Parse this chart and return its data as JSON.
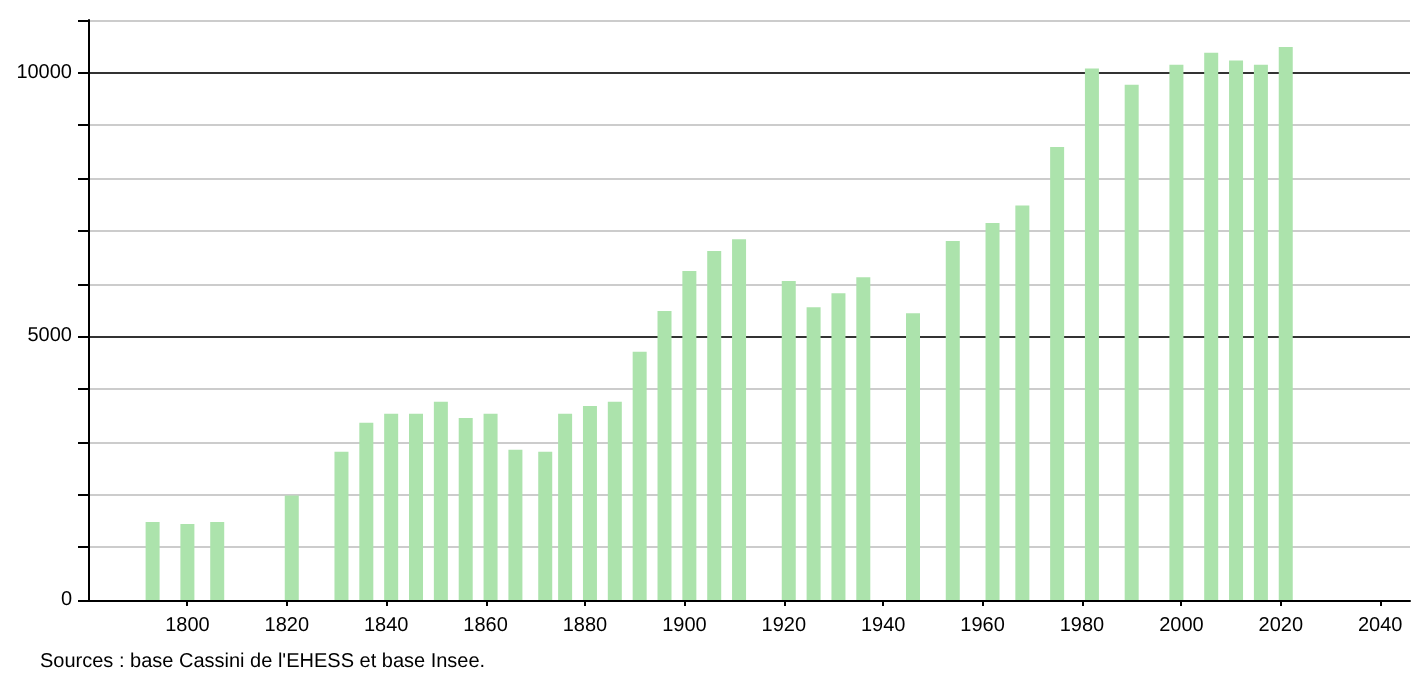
{
  "chart_data": {
    "type": "bar",
    "x": [
      1793,
      1800,
      1806,
      1821,
      1831,
      1836,
      1841,
      1846,
      1851,
      1856,
      1861,
      1866,
      1872,
      1876,
      1881,
      1886,
      1891,
      1896,
      1901,
      1906,
      1911,
      1921,
      1926,
      1931,
      1936,
      1946,
      1954,
      1962,
      1968,
      1975,
      1982,
      1990,
      1999,
      2006,
      2011,
      2016,
      2021
    ],
    "values": [
      1480,
      1440,
      1480,
      1980,
      2810,
      3360,
      3530,
      3530,
      3760,
      3450,
      3530,
      2850,
      2810,
      3530,
      3680,
      3760,
      4710,
      5480,
      6240,
      6620,
      6840,
      6050,
      5550,
      5820,
      6120,
      5440,
      6810,
      7150,
      7480,
      8590,
      10080,
      9770,
      10150,
      10380,
      10230,
      10150,
      10490
    ],
    "color": "#ace3ac",
    "xlim": [
      1780,
      2046
    ],
    "xticks": [
      1800,
      1820,
      1840,
      1860,
      1880,
      1900,
      1920,
      1940,
      1960,
      1980,
      2000,
      2020,
      2040
    ],
    "ylim": [
      0,
      11000
    ],
    "yticks": [
      0,
      {
        "value": 1000,
        "label": null
      },
      {
        "value": 2000,
        "label": null
      },
      {
        "value": 3000,
        "label": null
      },
      {
        "value": 4000,
        "label": null
      },
      5000,
      {
        "value": 6000,
        "label": null
      },
      {
        "value": 7000,
        "label": null
      },
      {
        "value": 8000,
        "label": null
      },
      {
        "value": 9000,
        "label": null
      },
      10000,
      {
        "value": 11000,
        "label": null
      }
    ],
    "grid": "y",
    "annotations": [
      "Sources : base Cassini de l'EHESS et base Insee."
    ]
  }
}
